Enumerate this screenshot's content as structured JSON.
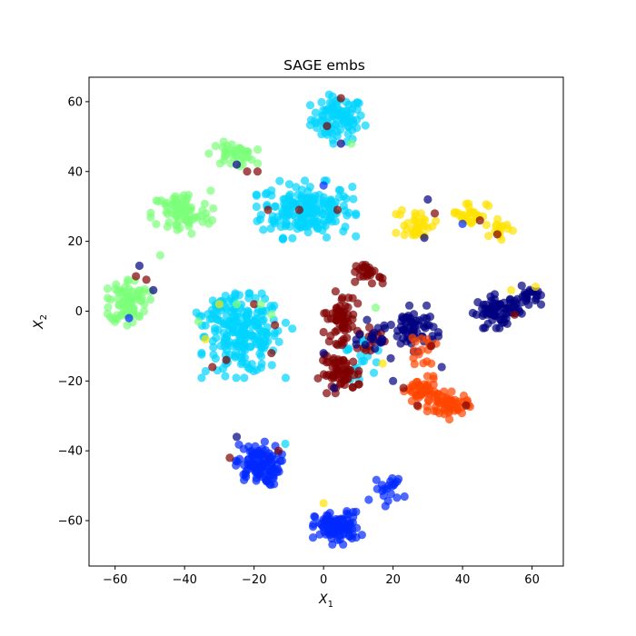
{
  "chart_data": {
    "type": "scatter",
    "title": "SAGE embs",
    "xlabel": "X",
    "xlabel_sub": "1",
    "ylabel": "X",
    "ylabel_sub": "2",
    "xlim": [
      -67.5,
      69
    ],
    "ylim": [
      -73,
      67
    ],
    "xticks": [
      -60,
      -40,
      -20,
      0,
      20,
      40,
      60
    ],
    "xtick_labels": [
      "−60",
      "−40",
      "−20",
      "0",
      "20",
      "40",
      "60"
    ],
    "yticks": [
      -60,
      -40,
      -20,
      0,
      20,
      40,
      60
    ],
    "ytick_labels": [
      "−60",
      "−40",
      "−20",
      "0",
      "20",
      "40",
      "60"
    ],
    "grid": false,
    "marker_opacity": 0.7,
    "clusters": [
      {
        "color": "#00d4ff",
        "center": [
          4,
          55
        ],
        "spread": [
          3.8,
          3.2
        ],
        "count": 90
      },
      {
        "color": "#00d4ff",
        "center": [
          -5,
          29
        ],
        "spread": [
          6.5,
          3.8
        ],
        "count": 190
      },
      {
        "color": "#00d4ff",
        "center": [
          -23,
          -7
        ],
        "spread": [
          5.5,
          5.5
        ],
        "count": 200
      },
      {
        "color": "#00d4ff",
        "center": [
          -30,
          0
        ],
        "spread": [
          3,
          2
        ],
        "count": 25
      },
      {
        "color": "#00d4ff",
        "center": [
          10,
          -13
        ],
        "spread": [
          4,
          3
        ],
        "count": 20
      },
      {
        "color": "#7cff79",
        "center": [
          -26,
          45
        ],
        "spread": [
          3.2,
          1.6
        ],
        "count": 40
      },
      {
        "color": "#7cff79",
        "center": [
          -41,
          28
        ],
        "spread": [
          4.2,
          3.2
        ],
        "count": 80
      },
      {
        "color": "#7cff79",
        "center": [
          -56,
          3
        ],
        "spread": [
          2.8,
          3.2
        ],
        "count": 80
      },
      {
        "color": "#0028ff",
        "center": [
          -19,
          -44
        ],
        "spread": [
          3.2,
          3
        ],
        "count": 100
      },
      {
        "color": "#0028ff",
        "center": [
          4,
          -62
        ],
        "spread": [
          3.2,
          2.2
        ],
        "count": 100
      },
      {
        "color": "#0028ff",
        "center": [
          19,
          -51
        ],
        "spread": [
          2,
          2.2
        ],
        "count": 20
      },
      {
        "color": "#800000",
        "center": [
          5,
          -2
        ],
        "spread": [
          2.2,
          3.5
        ],
        "count": 60
      },
      {
        "color": "#800000",
        "center": [
          5,
          -18
        ],
        "spread": [
          3,
          2.5
        ],
        "count": 60
      },
      {
        "color": "#800000",
        "center": [
          13,
          11
        ],
        "spread": [
          1.8,
          1.5
        ],
        "count": 25
      },
      {
        "color": "#800000",
        "center": [
          14,
          -8
        ],
        "spread": [
          2,
          1.5
        ],
        "count": 15
      },
      {
        "color": "#000080",
        "center": [
          50,
          0
        ],
        "spread": [
          3.2,
          2.2
        ],
        "count": 70
      },
      {
        "color": "#000080",
        "center": [
          59,
          4
        ],
        "spread": [
          1.8,
          1.5
        ],
        "count": 25
      },
      {
        "color": "#000080",
        "center": [
          26,
          -5
        ],
        "spread": [
          3.2,
          3
        ],
        "count": 60
      },
      {
        "color": "#000080",
        "center": [
          16,
          -8
        ],
        "spread": [
          3,
          2.5
        ],
        "count": 20
      },
      {
        "color": "#ff4600",
        "center": [
          28,
          -23
        ],
        "spread": [
          2.2,
          2
        ],
        "count": 50
      },
      {
        "color": "#ff4600",
        "center": [
          36,
          -27
        ],
        "spread": [
          2.8,
          1.8
        ],
        "count": 55
      },
      {
        "color": "#ff4600",
        "center": [
          28,
          -11
        ],
        "spread": [
          2,
          2
        ],
        "count": 15
      },
      {
        "color": "#ffe200",
        "center": [
          27,
          25
        ],
        "spread": [
          2.8,
          2.2
        ],
        "count": 35
      },
      {
        "color": "#ffe200",
        "center": [
          42,
          28
        ],
        "spread": [
          2.6,
          1.8
        ],
        "count": 30
      },
      {
        "color": "#ffe200",
        "center": [
          51,
          24
        ],
        "spread": [
          1.6,
          1.6
        ],
        "count": 15
      }
    ],
    "points": [
      {
        "x": -25,
        "y": 42,
        "color": "#000080"
      },
      {
        "x": -22,
        "y": 40,
        "color": "#800000"
      },
      {
        "x": -19,
        "y": 40,
        "color": "#800000"
      },
      {
        "x": -47,
        "y": 16,
        "color": "#7cff79"
      },
      {
        "x": -53,
        "y": 13,
        "color": "#000080"
      },
      {
        "x": -51,
        "y": 9,
        "color": "#800000"
      },
      {
        "x": -54,
        "y": 10,
        "color": "#800000"
      },
      {
        "x": -49,
        "y": 6,
        "color": "#000080"
      },
      {
        "x": -56,
        "y": -2,
        "color": "#0028ff"
      },
      {
        "x": -25,
        "y": -36,
        "color": "#000080"
      },
      {
        "x": -27,
        "y": -42,
        "color": "#800000"
      },
      {
        "x": -11,
        "y": -38,
        "color": "#00d4ff"
      },
      {
        "x": -13,
        "y": -40,
        "color": "#800000"
      },
      {
        "x": 0,
        "y": -55,
        "color": "#ffe200"
      },
      {
        "x": 13,
        "y": -54,
        "color": "#0028ff"
      },
      {
        "x": 5,
        "y": 61,
        "color": "#800000"
      },
      {
        "x": 1,
        "y": 53,
        "color": "#800000"
      },
      {
        "x": 5,
        "y": 48,
        "color": "#000080"
      },
      {
        "x": 8,
        "y": 48,
        "color": "#7cff79"
      },
      {
        "x": -7,
        "y": 29,
        "color": "#800000"
      },
      {
        "x": -16,
        "y": 29,
        "color": "#800000"
      },
      {
        "x": 4,
        "y": 29,
        "color": "#800000"
      },
      {
        "x": 0,
        "y": 36,
        "color": "#0028ff"
      },
      {
        "x": 32,
        "y": 28,
        "color": "#800000"
      },
      {
        "x": 29,
        "y": 21,
        "color": "#000080"
      },
      {
        "x": 30,
        "y": 32,
        "color": "#000080"
      },
      {
        "x": 40,
        "y": 25,
        "color": "#0028ff"
      },
      {
        "x": 45,
        "y": 26,
        "color": "#800000"
      },
      {
        "x": 50,
        "y": 22,
        "color": "#800000"
      },
      {
        "x": 61,
        "y": 7,
        "color": "#ffe200"
      },
      {
        "x": 54,
        "y": 6,
        "color": "#ffe200"
      },
      {
        "x": 44,
        "y": -1,
        "color": "#000080"
      },
      {
        "x": 55,
        "y": -1,
        "color": "#800000"
      },
      {
        "x": 17,
        "y": 8,
        "color": "#800000"
      },
      {
        "x": 15,
        "y": 1,
        "color": "#7cff79"
      },
      {
        "x": 0,
        "y": -6,
        "color": "#800000"
      },
      {
        "x": 0,
        "y": -12,
        "color": "#000080"
      },
      {
        "x": 3,
        "y": -22,
        "color": "#000080"
      },
      {
        "x": 10,
        "y": -21,
        "color": "#800000"
      },
      {
        "x": 17,
        "y": -15,
        "color": "#ffe200"
      },
      {
        "x": 20,
        "y": -20,
        "color": "#000080"
      },
      {
        "x": 23,
        "y": -22,
        "color": "#800000"
      },
      {
        "x": 34,
        "y": -16,
        "color": "#000080"
      },
      {
        "x": 31,
        "y": -10,
        "color": "#800000"
      },
      {
        "x": 31,
        "y": -15,
        "color": "#ff4600"
      },
      {
        "x": 41,
        "y": -27,
        "color": "#800000"
      },
      {
        "x": 27,
        "y": -27,
        "color": "#800000"
      },
      {
        "x": -32,
        "y": -16,
        "color": "#800000"
      },
      {
        "x": -28,
        "y": -14,
        "color": "#800000"
      },
      {
        "x": -15,
        "y": -12,
        "color": "#800000"
      },
      {
        "x": -20,
        "y": 2,
        "color": "#800000"
      },
      {
        "x": -14,
        "y": -4,
        "color": "#800000"
      },
      {
        "x": -34,
        "y": -8,
        "color": "#ffe200"
      },
      {
        "x": -36,
        "y": -3,
        "color": "#7cff79"
      },
      {
        "x": -30,
        "y": 2,
        "color": "#ffe200"
      },
      {
        "x": -25,
        "y": 2,
        "color": "#7cff79"
      },
      {
        "x": -18,
        "y": 2,
        "color": "#7cff79"
      },
      {
        "x": -15,
        "y": -1,
        "color": "#7cff79"
      },
      {
        "x": -9,
        "y": -5,
        "color": "#00d4ff"
      }
    ]
  }
}
